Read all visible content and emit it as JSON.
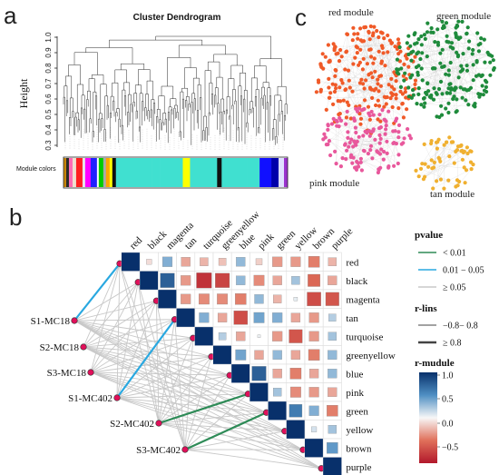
{
  "panels": {
    "a": "a",
    "b": "b",
    "c": "c"
  },
  "dendrogram": {
    "title": "Cluster Dendrogram",
    "ylabel": "Height",
    "yticks": [
      "1.0",
      "0.9",
      "0.8",
      "0.7",
      "0.6",
      "0.5",
      "0.4",
      "0.3"
    ],
    "colors_label": "Module colors",
    "color_bar": [
      "#c8860a",
      "#2a2a2a",
      "#ff69b4",
      "#f0e0d0",
      "#ff1e1e",
      "#e7e7e7",
      "#ff00ff",
      "#2020ff",
      "#ffffff",
      "#00cc00",
      "#aaaaaa",
      "#ffa500",
      "#ffff00",
      "#101010",
      "#40e0d0",
      "#40e0d0",
      "#40e0d0",
      "#ffff00",
      "#40e0d0",
      "#101010",
      "#40e0d0",
      "#40e0d0",
      "#1010ff",
      "#0000aa",
      "#e0e0ff",
      "#9a32cd"
    ]
  },
  "network": {
    "modules": [
      {
        "name": "red module",
        "color": "#f05a28"
      },
      {
        "name": "green module",
        "color": "#1f8b3c"
      },
      {
        "name": "pink module",
        "color": "#e8589c"
      },
      {
        "name": "tan module",
        "color": "#f0b030"
      }
    ]
  },
  "matrix": {
    "modules": [
      "red",
      "black",
      "magenta",
      "tan",
      "turquoise",
      "greenyellow",
      "blue",
      "pink",
      "green",
      "yellow",
      "brown",
      "purple"
    ],
    "mcs": [
      "S1-MC18",
      "S2-MC18",
      "S3-MC18",
      "S1-MC402",
      "S2-MC402",
      "S3-MC402"
    ],
    "values": [
      [
        1.0,
        -0.1,
        0.35,
        -0.3,
        -0.25,
        -0.2,
        0.3,
        -0.15,
        -0.35,
        -0.35,
        -0.45,
        -0.25
      ],
      [
        -0.1,
        1.0,
        0.75,
        -0.35,
        -0.85,
        -0.75,
        0.3,
        -0.4,
        -0.3,
        0.25,
        -0.55,
        -0.3
      ],
      [
        0.35,
        0.75,
        1.0,
        -0.35,
        -0.4,
        -0.4,
        -0.45,
        0.3,
        -0.25,
        0.05,
        -0.7,
        -0.65
      ],
      [
        -0.3,
        -0.35,
        -0.35,
        1.0,
        0.35,
        -0.3,
        -0.7,
        0.4,
        0.35,
        -0.3,
        -0.35,
        0.2
      ],
      [
        -0.25,
        -0.85,
        -0.4,
        0.35,
        1.0,
        0.2,
        -0.3,
        0.03,
        -0.35,
        -0.65,
        -0.35,
        0.25
      ],
      [
        -0.2,
        -0.75,
        -0.4,
        -0.3,
        0.2,
        1.0,
        0.4,
        -0.3,
        0.3,
        -0.3,
        -0.45,
        0.3
      ],
      [
        0.3,
        0.3,
        -0.45,
        -0.7,
        -0.3,
        0.4,
        1.0,
        0.75,
        -0.3,
        -0.45,
        -0.3,
        0.3
      ],
      [
        -0.15,
        -0.4,
        0.3,
        0.4,
        0.03,
        -0.3,
        0.75,
        1.0,
        0.25,
        -0.4,
        -0.35,
        -0.3
      ],
      [
        -0.35,
        -0.3,
        -0.25,
        0.35,
        -0.35,
        0.3,
        -0.3,
        0.25,
        1.0,
        0.6,
        0.35,
        -0.45
      ],
      [
        -0.35,
        0.25,
        0.05,
        -0.3,
        -0.65,
        -0.3,
        -0.45,
        -0.4,
        0.6,
        1.0,
        0.1,
        0.25
      ],
      [
        -0.45,
        -0.55,
        -0.7,
        -0.35,
        -0.35,
        -0.45,
        -0.3,
        -0.35,
        0.35,
        0.1,
        1.0,
        0.45
      ],
      [
        -0.25,
        -0.3,
        -0.65,
        0.2,
        0.25,
        0.3,
        0.3,
        -0.3,
        -0.45,
        0.25,
        0.45,
        1.0
      ]
    ]
  },
  "legend": {
    "pvalue_title": "pvalue",
    "pvalue_items": [
      {
        "label": "< 0.01",
        "color": "#2e8b57"
      },
      {
        "label": "0.01 − 0.05",
        "color": "#29a8e0"
      },
      {
        "label": "≥ 0.05",
        "color": "#c8c8c8"
      }
    ],
    "rlins_title": "r-lins",
    "rlins_items": [
      {
        "label": "−0.8− 0.8",
        "width": 1
      },
      {
        "label": "≥ 0.8",
        "width": 2.5
      }
    ],
    "rmodule_title": "r-mudule",
    "rmodule_ticks": [
      "1.0",
      "0.5",
      "0.0",
      "−0.5"
    ]
  }
}
